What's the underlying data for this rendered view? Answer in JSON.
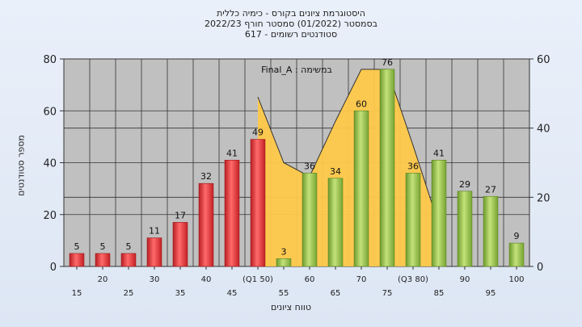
{
  "chart_data": {
    "type": "bar",
    "title": [
      "היסטוגרמת ציונים בקורס - כימיה כללית",
      "בסמסטר  (01/2022)  סמסטר חורף 2022/23",
      "סטודנטים רשומים - 617"
    ],
    "xlabel": "טווח ציונים",
    "ylabel": "מספר סטודנטים",
    "legend_text": "במשימה : Final_A",
    "categories": [
      "15",
      "20",
      "25",
      "30",
      "35",
      "40",
      "45",
      "(Q1 50)",
      "55",
      "60",
      "65",
      "70",
      "75",
      "(Q3 80)",
      "85",
      "90",
      "95",
      "100"
    ],
    "values": [
      5,
      5,
      5,
      11,
      17,
      32,
      41,
      49,
      3,
      36,
      34,
      60,
      76,
      36,
      41,
      29,
      27,
      9
    ],
    "bar_colors": [
      "red",
      "red",
      "red",
      "red",
      "red",
      "red",
      "red",
      "red",
      "green",
      "green",
      "green",
      "green",
      "green",
      "green",
      "green",
      "green",
      "green",
      "green"
    ],
    "ylim": [
      0,
      80
    ],
    "yticks": [
      0,
      20,
      40,
      60,
      80
    ],
    "y2lim": [
      0,
      60
    ],
    "y2ticks": [
      0,
      20,
      40,
      60
    ],
    "area_overlay": {
      "description_color": "#ffc94a",
      "values": [
        null,
        null,
        null,
        null,
        null,
        null,
        null,
        49,
        30,
        26,
        42,
        57,
        57,
        35,
        12,
        null,
        null,
        null
      ]
    },
    "colors": {
      "red": "#e8383b",
      "green": "#94c24a",
      "area": "#ffc94a",
      "plot_bg": "#c0c0c0"
    }
  }
}
